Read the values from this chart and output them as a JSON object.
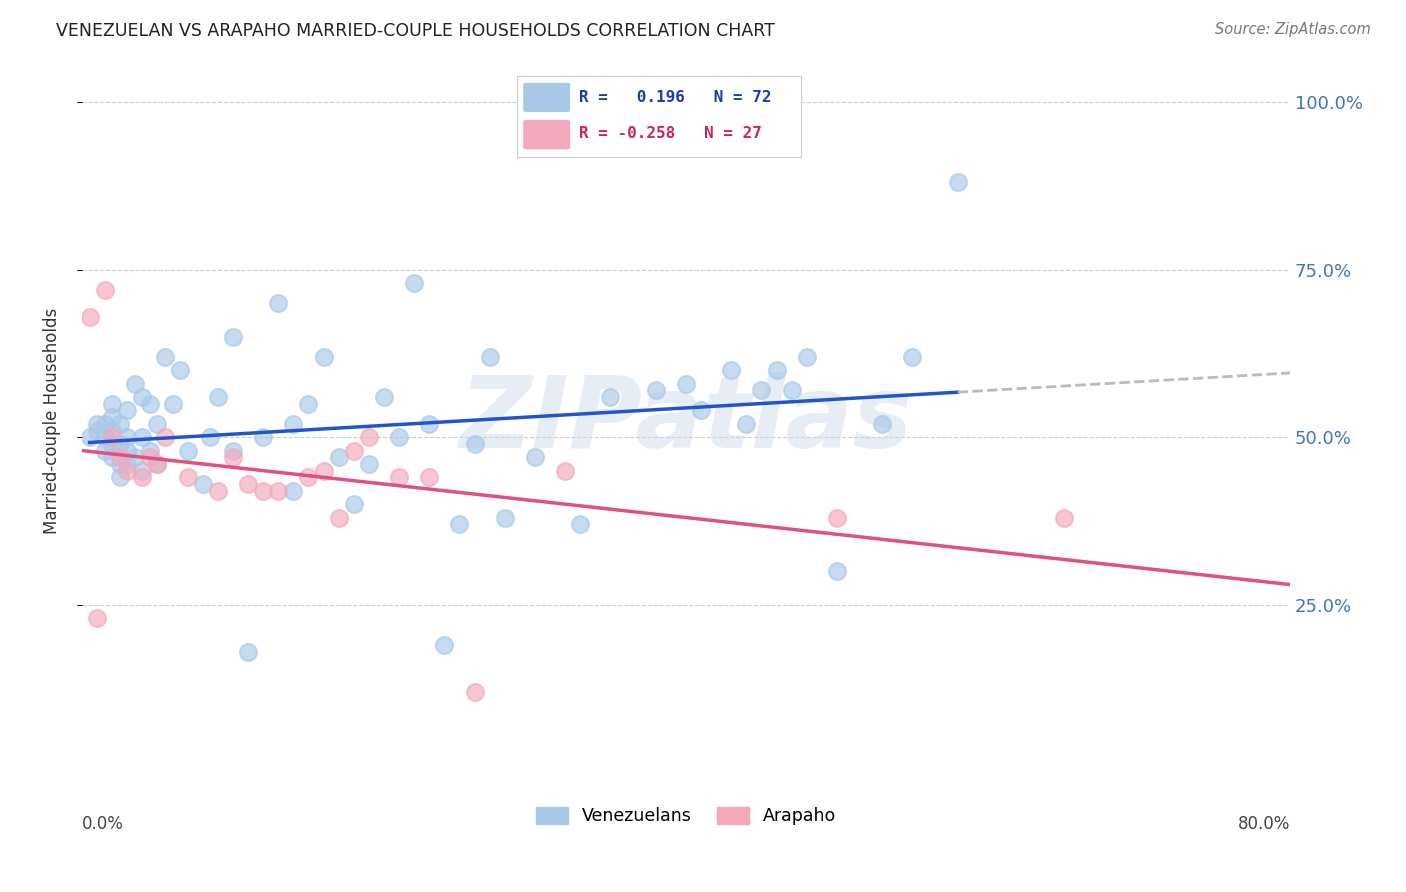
{
  "title": "VENEZUELAN VS ARAPAHO MARRIED-COUPLE HOUSEHOLDS CORRELATION CHART",
  "source": "Source: ZipAtlas.com",
  "ylabel": "Married-couple Households",
  "yticks_labels": [
    "25.0%",
    "50.0%",
    "75.0%",
    "100.0%"
  ],
  "ytick_vals": [
    0.25,
    0.5,
    0.75,
    1.0
  ],
  "xlim": [
    0.0,
    0.8
  ],
  "ylim": [
    0.0,
    1.05
  ],
  "venezuelan_color": "#a8c8e8",
  "arapaho_color": "#f4a8bc",
  "trend_blue": "#2255cc",
  "trend_pink": "#e05080",
  "trend_gray_dashed": "#bbbbbb",
  "background_color": "#ffffff",
  "grid_color": "#cccccc",
  "venezuelan_x": [
    0.005,
    0.01,
    0.01,
    0.015,
    0.015,
    0.015,
    0.02,
    0.02,
    0.02,
    0.02,
    0.02,
    0.025,
    0.025,
    0.025,
    0.025,
    0.03,
    0.03,
    0.03,
    0.03,
    0.035,
    0.035,
    0.04,
    0.04,
    0.04,
    0.045,
    0.045,
    0.05,
    0.05,
    0.055,
    0.06,
    0.065,
    0.07,
    0.08,
    0.085,
    0.09,
    0.1,
    0.1,
    0.11,
    0.12,
    0.13,
    0.14,
    0.14,
    0.15,
    0.16,
    0.17,
    0.18,
    0.19,
    0.2,
    0.21,
    0.22,
    0.23,
    0.24,
    0.25,
    0.26,
    0.27,
    0.28,
    0.3,
    0.33,
    0.35,
    0.38,
    0.4,
    0.41,
    0.43,
    0.44,
    0.45,
    0.46,
    0.47,
    0.48,
    0.5,
    0.53,
    0.55,
    0.58
  ],
  "venezuelan_y": [
    0.5,
    0.51,
    0.52,
    0.48,
    0.5,
    0.52,
    0.47,
    0.49,
    0.51,
    0.53,
    0.55,
    0.44,
    0.46,
    0.49,
    0.52,
    0.46,
    0.48,
    0.5,
    0.54,
    0.47,
    0.58,
    0.45,
    0.5,
    0.56,
    0.48,
    0.55,
    0.46,
    0.52,
    0.62,
    0.55,
    0.6,
    0.48,
    0.43,
    0.5,
    0.56,
    0.48,
    0.65,
    0.18,
    0.5,
    0.7,
    0.42,
    0.52,
    0.55,
    0.62,
    0.47,
    0.4,
    0.46,
    0.56,
    0.5,
    0.73,
    0.52,
    0.19,
    0.37,
    0.49,
    0.62,
    0.38,
    0.47,
    0.37,
    0.56,
    0.57,
    0.58,
    0.54,
    0.6,
    0.52,
    0.57,
    0.6,
    0.57,
    0.62,
    0.3,
    0.52,
    0.62,
    0.88
  ],
  "arapaho_x": [
    0.005,
    0.01,
    0.015,
    0.02,
    0.025,
    0.03,
    0.04,
    0.045,
    0.05,
    0.055,
    0.07,
    0.09,
    0.1,
    0.11,
    0.12,
    0.13,
    0.15,
    0.16,
    0.17,
    0.18,
    0.19,
    0.21,
    0.23,
    0.26,
    0.32,
    0.5,
    0.65
  ],
  "arapaho_y": [
    0.68,
    0.23,
    0.72,
    0.5,
    0.47,
    0.45,
    0.44,
    0.47,
    0.46,
    0.5,
    0.44,
    0.42,
    0.47,
    0.43,
    0.42,
    0.42,
    0.44,
    0.45,
    0.38,
    0.48,
    0.5,
    0.44,
    0.44,
    0.12,
    0.45,
    0.38,
    0.38
  ],
  "watermark_text": "ZIPatlas",
  "legend_label_ven": "Venezuelans",
  "legend_label_ara": "Arapaho"
}
